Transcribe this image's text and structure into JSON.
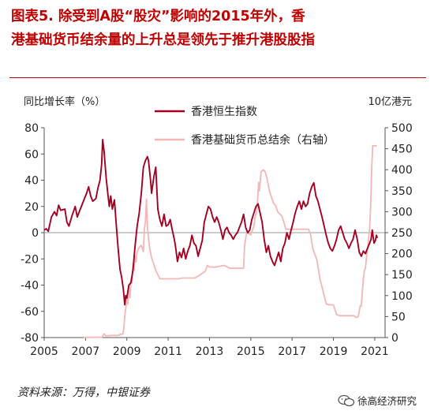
{
  "figure": {
    "title_line1": "图表5. 除受到A股“股灾”影响的2015年外，香",
    "title_line2": "港基础货币结余量的上升总是领先于推升港股股指",
    "source": "资料来源：万得，中银证券",
    "watermark": "徐高经济研究",
    "colors": {
      "title": "#c00000",
      "hsi": "#a50021",
      "base": "#f4b6b6"
    }
  },
  "chart_data": {
    "type": "line",
    "ylabel_left": "同比增长率（%）",
    "ylabel_right": "10亿港元",
    "ylim_left": [
      -80,
      80
    ],
    "yticks_left": [
      -80,
      -60,
      -40,
      -20,
      0,
      20,
      40,
      60,
      80
    ],
    "ylim_right": [
      0,
      500
    ],
    "yticks_right": [
      0,
      50,
      100,
      150,
      200,
      250,
      300,
      350,
      400,
      450,
      500
    ],
    "xlim": [
      2005,
      2021.5
    ],
    "xticks": [
      "2005",
      "2007",
      "2009",
      "2011",
      "2013",
      "2015",
      "2017",
      "2019",
      "2021"
    ],
    "legend_position": "top-right",
    "series": [
      {
        "name": "香港恒生指数",
        "axis": "left",
        "color": "#a50021",
        "points": [
          [
            2005.0,
            2
          ],
          [
            2005.1,
            3
          ],
          [
            2005.2,
            1
          ],
          [
            2005.35,
            12
          ],
          [
            2005.5,
            16
          ],
          [
            2005.6,
            13
          ],
          [
            2005.7,
            21
          ],
          [
            2005.8,
            17
          ],
          [
            2006.0,
            18
          ],
          [
            2006.1,
            8
          ],
          [
            2006.2,
            5
          ],
          [
            2006.35,
            13
          ],
          [
            2006.5,
            20
          ],
          [
            2006.6,
            12
          ],
          [
            2006.75,
            18
          ],
          [
            2006.9,
            24
          ],
          [
            2007.05,
            30
          ],
          [
            2007.15,
            35
          ],
          [
            2007.25,
            28
          ],
          [
            2007.35,
            24
          ],
          [
            2007.5,
            26
          ],
          [
            2007.6,
            34
          ],
          [
            2007.7,
            40
          ],
          [
            2007.78,
            52
          ],
          [
            2007.83,
            71
          ],
          [
            2007.9,
            62
          ],
          [
            2008.0,
            42
          ],
          [
            2008.08,
            30
          ],
          [
            2008.15,
            20
          ],
          [
            2008.22,
            28
          ],
          [
            2008.3,
            18
          ],
          [
            2008.4,
            25
          ],
          [
            2008.5,
            4
          ],
          [
            2008.58,
            -12
          ],
          [
            2008.67,
            -28
          ],
          [
            2008.75,
            -34
          ],
          [
            2008.83,
            -43
          ],
          [
            2008.9,
            -55
          ],
          [
            2008.95,
            -48
          ],
          [
            2009.0,
            -50
          ],
          [
            2009.1,
            -40
          ],
          [
            2009.2,
            -38
          ],
          [
            2009.3,
            -28
          ],
          [
            2009.4,
            -10
          ],
          [
            2009.5,
            5
          ],
          [
            2009.6,
            15
          ],
          [
            2009.7,
            30
          ],
          [
            2009.8,
            50
          ],
          [
            2009.9,
            55
          ],
          [
            2010.0,
            58
          ],
          [
            2010.05,
            55
          ],
          [
            2010.15,
            40
          ],
          [
            2010.2,
            30
          ],
          [
            2010.3,
            42
          ],
          [
            2010.4,
            50
          ],
          [
            2010.5,
            18
          ],
          [
            2010.6,
            10
          ],
          [
            2010.7,
            5
          ],
          [
            2010.8,
            14
          ],
          [
            2010.9,
            5
          ],
          [
            2011.0,
            6
          ],
          [
            2011.1,
            10
          ],
          [
            2011.2,
            2
          ],
          [
            2011.3,
            -5
          ],
          [
            2011.35,
            -10
          ],
          [
            2011.45,
            -22
          ],
          [
            2011.55,
            -15
          ],
          [
            2011.65,
            -19
          ],
          [
            2011.75,
            -12
          ],
          [
            2011.85,
            -20
          ],
          [
            2011.95,
            -14
          ],
          [
            2012.05,
            -10
          ],
          [
            2012.15,
            -2
          ],
          [
            2012.25,
            -8
          ],
          [
            2012.35,
            -10
          ],
          [
            2012.45,
            -18
          ],
          [
            2012.55,
            -12
          ],
          [
            2012.65,
            -6
          ],
          [
            2012.75,
            8
          ],
          [
            2012.85,
            14
          ],
          [
            2012.95,
            20
          ],
          [
            2013.05,
            18
          ],
          [
            2013.15,
            12
          ],
          [
            2013.25,
            8
          ],
          [
            2013.35,
            12
          ],
          [
            2013.45,
            8
          ],
          [
            2013.55,
            2
          ],
          [
            2013.65,
            -5
          ],
          [
            2013.75,
            2
          ],
          [
            2013.85,
            4
          ],
          [
            2013.95,
            0
          ],
          [
            2014.05,
            -2
          ],
          [
            2014.15,
            -5
          ],
          [
            2014.25,
            -2
          ],
          [
            2014.35,
            0
          ],
          [
            2014.45,
            4
          ],
          [
            2014.55,
            8
          ],
          [
            2014.65,
            14
          ],
          [
            2014.75,
            4
          ],
          [
            2014.85,
            0
          ],
          [
            2014.95,
            2
          ],
          [
            2015.05,
            10
          ],
          [
            2015.15,
            15
          ],
          [
            2015.25,
            20
          ],
          [
            2015.35,
            22
          ],
          [
            2015.45,
            15
          ],
          [
            2015.55,
            8
          ],
          [
            2015.65,
            -5
          ],
          [
            2015.75,
            -15
          ],
          [
            2015.85,
            -10
          ],
          [
            2015.95,
            -18
          ],
          [
            2016.05,
            -22
          ],
          [
            2016.15,
            -25
          ],
          [
            2016.25,
            -20
          ],
          [
            2016.35,
            -15
          ],
          [
            2016.45,
            -22
          ],
          [
            2016.55,
            -12
          ],
          [
            2016.65,
            -8
          ],
          [
            2016.75,
            0
          ],
          [
            2016.85,
            -5
          ],
          [
            2016.95,
            2
          ],
          [
            2017.05,
            8
          ],
          [
            2017.15,
            15
          ],
          [
            2017.25,
            20
          ],
          [
            2017.35,
            24
          ],
          [
            2017.45,
            18
          ],
          [
            2017.55,
            24
          ],
          [
            2017.65,
            20
          ],
          [
            2017.75,
            22
          ],
          [
            2017.85,
            30
          ],
          [
            2017.95,
            35
          ],
          [
            2018.05,
            38
          ],
          [
            2018.15,
            28
          ],
          [
            2018.25,
            24
          ],
          [
            2018.35,
            18
          ],
          [
            2018.45,
            12
          ],
          [
            2018.55,
            5
          ],
          [
            2018.65,
            -2
          ],
          [
            2018.75,
            -8
          ],
          [
            2018.85,
            -12
          ],
          [
            2018.95,
            -14
          ],
          [
            2019.05,
            -10
          ],
          [
            2019.15,
            -5
          ],
          [
            2019.25,
            2
          ],
          [
            2019.35,
            5
          ],
          [
            2019.45,
            0
          ],
          [
            2019.55,
            -5
          ],
          [
            2019.65,
            -8
          ],
          [
            2019.75,
            -12
          ],
          [
            2019.85,
            -8
          ],
          [
            2019.95,
            -5
          ],
          [
            2020.05,
            2
          ],
          [
            2020.15,
            -5
          ],
          [
            2020.25,
            -15
          ],
          [
            2020.35,
            -18
          ],
          [
            2020.45,
            -14
          ],
          [
            2020.55,
            -16
          ],
          [
            2020.65,
            -12
          ],
          [
            2020.75,
            -8
          ],
          [
            2020.82,
            -5
          ],
          [
            2020.88,
            2
          ],
          [
            2020.92,
            -3
          ],
          [
            2020.97,
            -8
          ],
          [
            2021.03,
            -6
          ],
          [
            2021.08,
            -2
          ],
          [
            2021.13,
            -4
          ]
        ]
      },
      {
        "name": "香港基础货币总结余（右轴）",
        "axis": "right",
        "color": "#f4b6b6",
        "points": [
          [
            2006.9,
            0.5
          ],
          [
            2007.3,
            0.5
          ],
          [
            2007.6,
            1
          ],
          [
            2007.8,
            0.5
          ],
          [
            2007.9,
            9
          ],
          [
            2008.0,
            4
          ],
          [
            2008.3,
            5
          ],
          [
            2008.6,
            5
          ],
          [
            2008.7,
            8
          ],
          [
            2008.8,
            8
          ],
          [
            2008.85,
            20
          ],
          [
            2008.9,
            50
          ],
          [
            2008.95,
            70
          ],
          [
            2009.0,
            90
          ],
          [
            2009.05,
            80
          ],
          [
            2009.1,
            120
          ],
          [
            2009.15,
            95
          ],
          [
            2009.2,
            140
          ],
          [
            2009.25,
            130
          ],
          [
            2009.3,
            175
          ],
          [
            2009.35,
            160
          ],
          [
            2009.4,
            195
          ],
          [
            2009.45,
            180
          ],
          [
            2009.5,
            205
          ],
          [
            2009.6,
            215
          ],
          [
            2009.7,
            220
          ],
          [
            2009.8,
            205
          ],
          [
            2009.85,
            260
          ],
          [
            2009.9,
            275
          ],
          [
            2009.95,
            330
          ],
          [
            2010.0,
            260
          ],
          [
            2010.1,
            215
          ],
          [
            2010.2,
            190
          ],
          [
            2010.3,
            175
          ],
          [
            2010.4,
            160
          ],
          [
            2010.5,
            150
          ],
          [
            2010.6,
            140
          ],
          [
            2010.7,
            140
          ],
          [
            2011.5,
            140
          ],
          [
            2011.7,
            142
          ],
          [
            2012.3,
            142
          ],
          [
            2012.5,
            148
          ],
          [
            2012.8,
            158
          ],
          [
            2012.9,
            172
          ],
          [
            2013.0,
            168
          ],
          [
            2013.3,
            168
          ],
          [
            2013.7,
            172
          ],
          [
            2014.0,
            165
          ],
          [
            2014.3,
            165
          ],
          [
            2014.65,
            165
          ],
          [
            2014.7,
            220
          ],
          [
            2014.8,
            250
          ],
          [
            2015.0,
            245
          ],
          [
            2015.15,
            265
          ],
          [
            2015.2,
            285
          ],
          [
            2015.3,
            305
          ],
          [
            2015.38,
            370
          ],
          [
            2015.42,
            350
          ],
          [
            2015.5,
            395
          ],
          [
            2015.6,
            400
          ],
          [
            2015.7,
            395
          ],
          [
            2015.8,
            375
          ],
          [
            2015.9,
            350
          ],
          [
            2016.0,
            335
          ],
          [
            2016.1,
            320
          ],
          [
            2016.2,
            315
          ],
          [
            2016.3,
            300
          ],
          [
            2016.4,
            295
          ],
          [
            2016.5,
            290
          ],
          [
            2016.6,
            275
          ],
          [
            2016.7,
            258
          ],
          [
            2017.5,
            258
          ],
          [
            2017.8,
            258
          ],
          [
            2017.9,
            245
          ],
          [
            2018.0,
            212
          ],
          [
            2018.2,
            185
          ],
          [
            2018.35,
            140
          ],
          [
            2018.5,
            110
          ],
          [
            2018.65,
            80
          ],
          [
            2018.8,
            78
          ],
          [
            2019.0,
            78
          ],
          [
            2019.15,
            55
          ],
          [
            2019.3,
            52
          ],
          [
            2019.7,
            52
          ],
          [
            2019.9,
            52
          ],
          [
            2020.0,
            52
          ],
          [
            2020.1,
            48
          ],
          [
            2020.2,
            50
          ],
          [
            2020.3,
            76
          ],
          [
            2020.35,
            75
          ],
          [
            2020.4,
            110
          ],
          [
            2020.45,
            140
          ],
          [
            2020.5,
            160
          ],
          [
            2020.55,
            165
          ],
          [
            2020.6,
            190
          ],
          [
            2020.65,
            210
          ],
          [
            2020.7,
            235
          ],
          [
            2020.75,
            260
          ],
          [
            2020.8,
            310
          ],
          [
            2020.85,
            400
          ],
          [
            2020.9,
            457
          ],
          [
            2021.0,
            457
          ],
          [
            2021.1,
            457
          ]
        ]
      }
    ]
  }
}
